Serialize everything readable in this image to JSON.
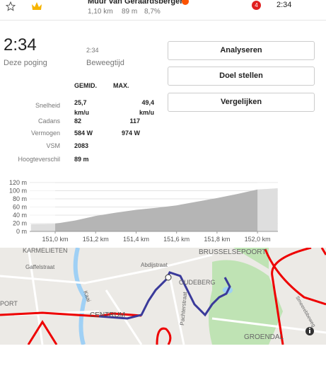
{
  "header": {
    "segment_name": "Muur van Geraardsbergen",
    "distance": "1,10 km",
    "elevation": "89 m",
    "grade": "8,7%",
    "rank": "4",
    "time": "2:34"
  },
  "summary": {
    "time": "2:34",
    "time_label": "Deze poging",
    "moving_time": "2:34",
    "moving_time_label": "Beweegtijd"
  },
  "buttons": [
    "Analyseren",
    "Doel stellen",
    "Vergelijken"
  ],
  "table": {
    "headers": [
      "GEMID.",
      "MAX."
    ],
    "rows": [
      [
        "Snelheid",
        "25,7 km/u",
        "49,4 km/u"
      ],
      [
        "Cadans",
        "82",
        "117"
      ],
      [
        "Vermogen",
        "584 W",
        "974 W"
      ],
      [
        "VSM",
        "2083",
        ""
      ],
      [
        "Hoogteverschil",
        "89 m",
        ""
      ]
    ]
  },
  "chart_data": {
    "type": "area",
    "color": "#b5b5b5",
    "x": [
      150.88,
      151.0,
      151.1,
      151.2,
      151.3,
      151.4,
      151.5,
      151.6,
      151.7,
      151.8,
      151.9,
      152.0,
      152.1
    ],
    "values": [
      18,
      19,
      27,
      38,
      46,
      53,
      58,
      64,
      73,
      82,
      92,
      103,
      106
    ],
    "xlim": [
      150.874,
      152.101
    ],
    "ylim": [
      0,
      120
    ],
    "xticks": [
      {
        "value": 151.0,
        "label": "151,0 km"
      },
      {
        "value": 151.2,
        "label": "151,2 km"
      },
      {
        "value": 151.4,
        "label": "151,4 km"
      },
      {
        "value": 151.6,
        "label": "151,6 km"
      },
      {
        "value": 151.8,
        "label": "151,8 km"
      },
      {
        "value": 152.0,
        "label": "152,0 km"
      }
    ],
    "yticks": [
      {
        "value": 0,
        "label": "0 m"
      },
      {
        "value": 20,
        "label": "20 m"
      },
      {
        "value": 40,
        "label": "40 m"
      },
      {
        "value": 60,
        "label": "60 m"
      },
      {
        "value": 80,
        "label": "80 m"
      },
      {
        "value": 100,
        "label": "100 m"
      },
      {
        "value": 120,
        "label": "120 m"
      }
    ],
    "grid": true
  },
  "map": {
    "labels": [
      "KARMELIETEN",
      "Gaffelstraat",
      "Abdijstraat",
      "BRUSSELSEPOORT",
      "OUDEBERG",
      "PORT",
      "Kaai",
      "CENTRUM",
      "Pachterstraat",
      "GROENDAL",
      "Smeerebbeweg"
    ]
  }
}
